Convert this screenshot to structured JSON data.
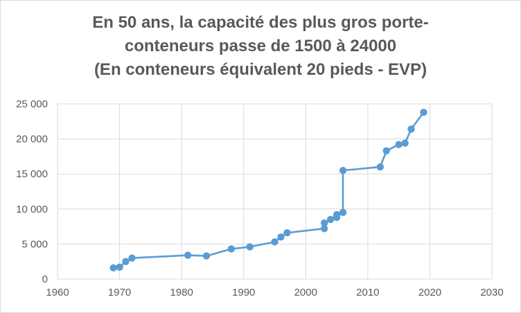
{
  "chart_data": {
    "type": "line",
    "title": [
      "En 50 ans, la capacité des plus gros porte-",
      "conteneurs passe de 1500 à 24000",
      "(En conteneurs équivalent 20 pieds - EVP)"
    ],
    "xlabel": "",
    "ylabel": "",
    "xlim": [
      1960,
      2030
    ],
    "ylim": [
      0,
      25000
    ],
    "x_ticks": [
      "1960",
      "1970",
      "1980",
      "1990",
      "2000",
      "2010",
      "2020",
      "2030"
    ],
    "y_ticks": [
      "0",
      "5 000",
      "10 000",
      "15 000",
      "20 000",
      "25 000"
    ],
    "grid": {
      "horizontal": true,
      "vertical": true
    },
    "legend": "none",
    "line_color": "#5b9bd5",
    "series": [
      {
        "x": [
          1969,
          1970,
          1971,
          1972,
          1981,
          1984,
          1988,
          1991,
          1995,
          1996,
          1997,
          2003,
          2003,
          2004,
          2005,
          2005,
          2006,
          2006,
          2012,
          2013,
          2015,
          2016,
          2017,
          2019
        ],
        "y": [
          1600,
          1700,
          2500,
          3000,
          3400,
          3300,
          4300,
          4600,
          5300,
          6000,
          6600,
          7200,
          8000,
          8500,
          8800,
          9200,
          9500,
          15500,
          16000,
          18300,
          19200,
          19400,
          21400,
          23800
        ]
      }
    ]
  }
}
